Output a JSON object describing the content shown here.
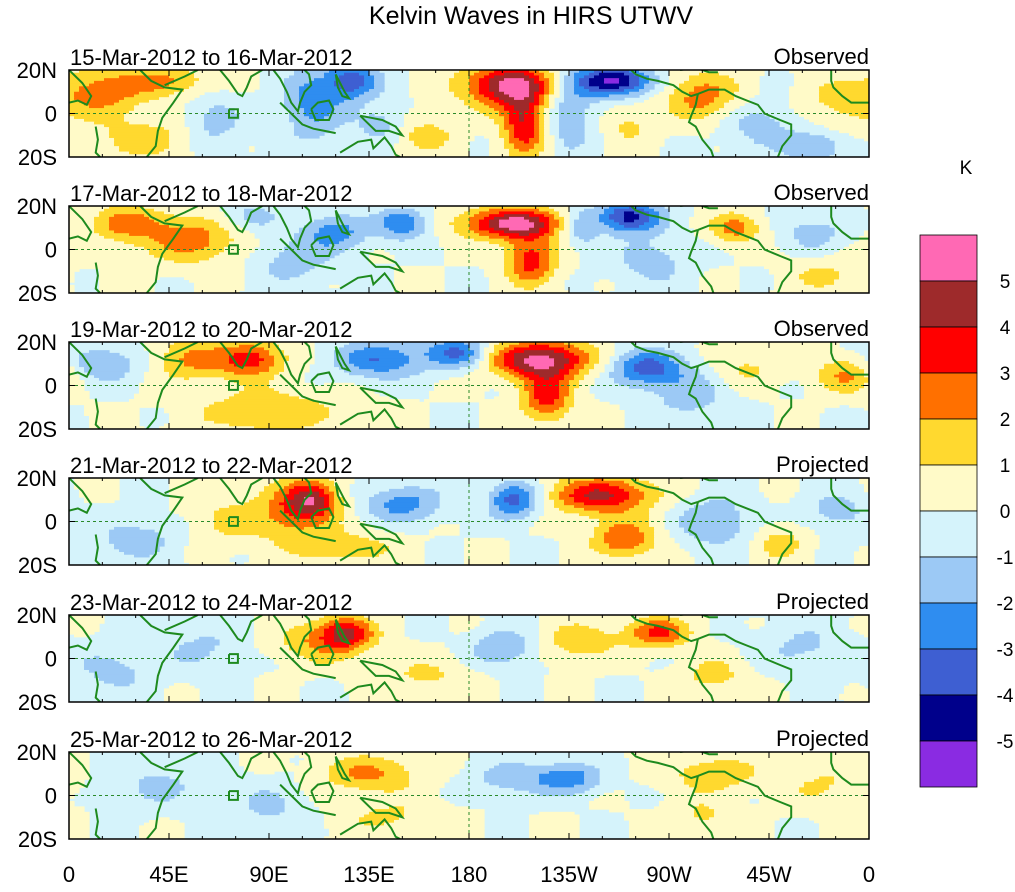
{
  "chart_data": {
    "type": "heatmap",
    "title": "Kelvin Waves in HIRS UTWV",
    "variable": "HIRS UTWV anomaly",
    "units": "K",
    "x_axis": {
      "ticks": [
        "0",
        "45E",
        "90E",
        "135E",
        "180",
        "135W",
        "90W",
        "45W",
        "0"
      ],
      "tick_lon_deg_east": [
        0,
        45,
        90,
        135,
        180,
        225,
        270,
        315,
        360
      ],
      "range": [
        0,
        360
      ]
    },
    "y_axis": {
      "ticks": [
        "20N",
        "0",
        "20S"
      ],
      "tick_lat": [
        20,
        0,
        -20
      ],
      "range": [
        -20,
        20
      ]
    },
    "colorbar": {
      "label": "K",
      "tick_labels": [
        "5",
        "4",
        "3",
        "2",
        "1",
        "0",
        "-1",
        "-2",
        "-3",
        "-4",
        "-5"
      ],
      "levels": [
        -5,
        -4,
        -3,
        -2,
        -1,
        0,
        1,
        2,
        3,
        4,
        5
      ],
      "colors_top_to_bottom": [
        "#ff69b4",
        "#9e2a2b",
        "#ff0000",
        "#ff7000",
        "#ffd92f",
        "#fffac8",
        "#d5f3fb",
        "#9cc9f5",
        "#2f8df0",
        "#3e5fd2",
        "#00008b",
        "#8a2be2"
      ]
    },
    "panels": [
      {
        "period": "15-Mar-2012 to 16-Mar-2012",
        "label": "Observed",
        "anomaly_features": [
          {
            "lon": 15,
            "lat": 10,
            "sx": 14,
            "sy": 8,
            "v": 2.5
          },
          {
            "lon": 45,
            "lat": 15,
            "sx": 14,
            "sy": 5,
            "v": 2
          },
          {
            "lon": 35,
            "lat": -12,
            "sx": 18,
            "sy": 7,
            "v": 1.5
          },
          {
            "lon": 65,
            "lat": -5,
            "sx": 10,
            "sy": 10,
            "v": -1.5
          },
          {
            "lon": 110,
            "lat": 5,
            "sx": 10,
            "sy": 12,
            "v": -2.5
          },
          {
            "lon": 128,
            "lat": 15,
            "sx": 8,
            "sy": 6,
            "v": -3.5
          },
          {
            "lon": 140,
            "lat": -5,
            "sx": 8,
            "sy": 6,
            "v": -1.5
          },
          {
            "lon": 160,
            "lat": -10,
            "sx": 10,
            "sy": 6,
            "v": 1.5
          },
          {
            "lon": 198,
            "lat": 13,
            "sx": 14,
            "sy": 7,
            "v": 5.3
          },
          {
            "lon": 205,
            "lat": -5,
            "sx": 7,
            "sy": 10,
            "v": 4
          },
          {
            "lon": 225,
            "lat": 0,
            "sx": 8,
            "sy": 12,
            "v": -2
          },
          {
            "lon": 245,
            "lat": 15,
            "sx": 12,
            "sy": 5,
            "v": -5.3
          },
          {
            "lon": 252,
            "lat": -5,
            "sx": 8,
            "sy": 7,
            "v": 1.2
          },
          {
            "lon": 285,
            "lat": 8,
            "sx": 12,
            "sy": 8,
            "v": 2.5
          },
          {
            "lon": 310,
            "lat": -5,
            "sx": 12,
            "sy": 8,
            "v": -1.5
          },
          {
            "lon": 345,
            "lat": 5,
            "sx": 12,
            "sy": 8,
            "v": 1.2
          },
          {
            "lon": 335,
            "lat": -15,
            "sx": 10,
            "sy": 5,
            "v": -2
          }
        ]
      },
      {
        "period": "17-Mar-2012 to 18-Mar-2012",
        "label": "Observed",
        "anomaly_features": [
          {
            "lon": 25,
            "lat": 12,
            "sx": 12,
            "sy": 6,
            "v": 2.2
          },
          {
            "lon": 55,
            "lat": 5,
            "sx": 16,
            "sy": 8,
            "v": 2.5
          },
          {
            "lon": 80,
            "lat": 15,
            "sx": 10,
            "sy": 5,
            "v": -1.5
          },
          {
            "lon": 100,
            "lat": -5,
            "sx": 12,
            "sy": 8,
            "v": -1.5
          },
          {
            "lon": 120,
            "lat": 8,
            "sx": 10,
            "sy": 6,
            "v": -2.5
          },
          {
            "lon": 150,
            "lat": 12,
            "sx": 8,
            "sy": 5,
            "v": -3
          },
          {
            "lon": 200,
            "lat": 12,
            "sx": 16,
            "sy": 5,
            "v": 5.3
          },
          {
            "lon": 208,
            "lat": -5,
            "sx": 8,
            "sy": 8,
            "v": 3.5
          },
          {
            "lon": 230,
            "lat": 10,
            "sx": 6,
            "sy": 6,
            "v": -2
          },
          {
            "lon": 252,
            "lat": 15,
            "sx": 10,
            "sy": 5,
            "v": -4.5
          },
          {
            "lon": 262,
            "lat": -5,
            "sx": 12,
            "sy": 8,
            "v": -1.5
          },
          {
            "lon": 300,
            "lat": 10,
            "sx": 8,
            "sy": 5,
            "v": 2.5
          },
          {
            "lon": 335,
            "lat": 8,
            "sx": 10,
            "sy": 6,
            "v": -1.5
          },
          {
            "lon": 340,
            "lat": -12,
            "sx": 12,
            "sy": 6,
            "v": 1.2
          }
        ]
      },
      {
        "period": "19-Mar-2012 to 20-Mar-2012",
        "label": "Observed",
        "anomaly_features": [
          {
            "lon": 15,
            "lat": 10,
            "sx": 12,
            "sy": 6,
            "v": -2
          },
          {
            "lon": 55,
            "lat": 12,
            "sx": 12,
            "sy": 7,
            "v": 2.2
          },
          {
            "lon": 82,
            "lat": 12,
            "sx": 10,
            "sy": 6,
            "v": 3.5
          },
          {
            "lon": 90,
            "lat": -12,
            "sx": 22,
            "sy": 7,
            "v": 2
          },
          {
            "lon": 140,
            "lat": 12,
            "sx": 14,
            "sy": 6,
            "v": -3
          },
          {
            "lon": 175,
            "lat": 15,
            "sx": 10,
            "sy": 5,
            "v": -3.2
          },
          {
            "lon": 212,
            "lat": 12,
            "sx": 16,
            "sy": 6,
            "v": 5.3
          },
          {
            "lon": 215,
            "lat": -5,
            "sx": 8,
            "sy": 8,
            "v": 3.5
          },
          {
            "lon": 260,
            "lat": 8,
            "sx": 12,
            "sy": 6,
            "v": -3.5
          },
          {
            "lon": 280,
            "lat": -5,
            "sx": 12,
            "sy": 8,
            "v": -1.5
          },
          {
            "lon": 305,
            "lat": 8,
            "sx": 10,
            "sy": 6,
            "v": 1.2
          },
          {
            "lon": 350,
            "lat": 5,
            "sx": 10,
            "sy": 6,
            "v": 2.2
          }
        ]
      },
      {
        "period": "21-Mar-2012 to 22-Mar-2012",
        "label": "Projected",
        "anomaly_features": [
          {
            "lon": 30,
            "lat": -8,
            "sx": 14,
            "sy": 7,
            "v": -1.5
          },
          {
            "lon": 70,
            "lat": 0,
            "sx": 12,
            "sy": 8,
            "v": 1.2
          },
          {
            "lon": 100,
            "lat": 5,
            "sx": 12,
            "sy": 10,
            "v": 2.5
          },
          {
            "lon": 110,
            "lat": 10,
            "sx": 8,
            "sy": 6,
            "v": 3.5
          },
          {
            "lon": 125,
            "lat": -12,
            "sx": 16,
            "sy": 6,
            "v": 1.5
          },
          {
            "lon": 150,
            "lat": 8,
            "sx": 12,
            "sy": 6,
            "v": -2.5
          },
          {
            "lon": 200,
            "lat": 10,
            "sx": 8,
            "sy": 6,
            "v": -3.5
          },
          {
            "lon": 240,
            "lat": 12,
            "sx": 16,
            "sy": 6,
            "v": 4.2
          },
          {
            "lon": 250,
            "lat": -8,
            "sx": 10,
            "sy": 6,
            "v": 3
          },
          {
            "lon": 290,
            "lat": 0,
            "sx": 12,
            "sy": 8,
            "v": -2
          },
          {
            "lon": 320,
            "lat": -10,
            "sx": 8,
            "sy": 6,
            "v": 1.5
          },
          {
            "lon": 345,
            "lat": 5,
            "sx": 10,
            "sy": 6,
            "v": -1.5
          }
        ]
      },
      {
        "period": "23-Mar-2012 to 24-Mar-2012",
        "label": "Projected",
        "anomaly_features": [
          {
            "lon": 20,
            "lat": -5,
            "sx": 14,
            "sy": 8,
            "v": -1.3
          },
          {
            "lon": 60,
            "lat": 5,
            "sx": 12,
            "sy": 8,
            "v": -1.2
          },
          {
            "lon": 115,
            "lat": 8,
            "sx": 14,
            "sy": 7,
            "v": 2.2
          },
          {
            "lon": 125,
            "lat": 12,
            "sx": 8,
            "sy": 5,
            "v": 3.2
          },
          {
            "lon": 160,
            "lat": -8,
            "sx": 14,
            "sy": 6,
            "v": 1.2
          },
          {
            "lon": 195,
            "lat": 5,
            "sx": 10,
            "sy": 6,
            "v": -2
          },
          {
            "lon": 230,
            "lat": 8,
            "sx": 12,
            "sy": 6,
            "v": 1.8
          },
          {
            "lon": 265,
            "lat": 12,
            "sx": 10,
            "sy": 5,
            "v": 3.2
          },
          {
            "lon": 290,
            "lat": -8,
            "sx": 10,
            "sy": 6,
            "v": 1.5
          },
          {
            "lon": 330,
            "lat": 5,
            "sx": 14,
            "sy": 8,
            "v": -1.2
          }
        ]
      },
      {
        "period": "25-Mar-2012 to 26-Mar-2012",
        "label": "Projected",
        "anomaly_features": [
          {
            "lon": 40,
            "lat": 5,
            "sx": 16,
            "sy": 8,
            "v": -1.2
          },
          {
            "lon": 90,
            "lat": -5,
            "sx": 12,
            "sy": 8,
            "v": -1.2
          },
          {
            "lon": 135,
            "lat": 10,
            "sx": 16,
            "sy": 6,
            "v": 2.2
          },
          {
            "lon": 145,
            "lat": -10,
            "sx": 16,
            "sy": 6,
            "v": 1.2
          },
          {
            "lon": 200,
            "lat": 8,
            "sx": 14,
            "sy": 6,
            "v": -1.5
          },
          {
            "lon": 225,
            "lat": 8,
            "sx": 10,
            "sy": 5,
            "v": -2.5
          },
          {
            "lon": 290,
            "lat": 10,
            "sx": 14,
            "sy": 6,
            "v": 1.8
          },
          {
            "lon": 285,
            "lat": -10,
            "sx": 10,
            "sy": 6,
            "v": 1.2
          },
          {
            "lon": 340,
            "lat": 5,
            "sx": 14,
            "sy": 8,
            "v": 1.1
          }
        ]
      }
    ]
  }
}
